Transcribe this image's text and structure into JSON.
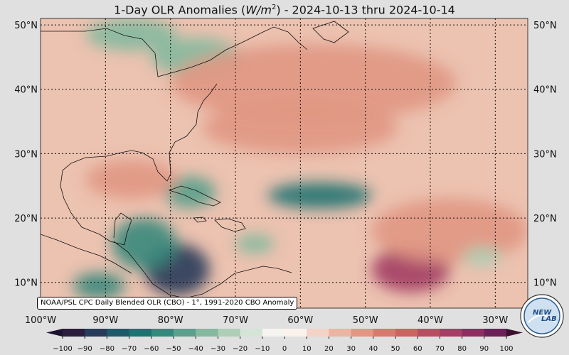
{
  "title": {
    "prefix": "1-Day OLR Anomalies (",
    "unit_main": "W/m",
    "unit_exp": "2",
    "suffix": ") - 2024-10-13 thru 2024-10-14"
  },
  "map": {
    "lat_ticks": [
      {
        "value": 50,
        "label": "50°N"
      },
      {
        "value": 40,
        "label": "40°N"
      },
      {
        "value": 30,
        "label": "30°N"
      },
      {
        "value": 20,
        "label": "20°N"
      },
      {
        "value": 10,
        "label": "10°N"
      }
    ],
    "lon_ticks": [
      {
        "value": -100,
        "label": "100°W"
      },
      {
        "value": -90,
        "label": "90°W"
      },
      {
        "value": -80,
        "label": "80°W"
      },
      {
        "value": -70,
        "label": "70°W"
      },
      {
        "value": -60,
        "label": "60°W"
      },
      {
        "value": -50,
        "label": "50°W"
      },
      {
        "value": -40,
        "label": "40°W"
      },
      {
        "value": -30,
        "label": "30°W"
      }
    ],
    "extent": {
      "lon_min": -100,
      "lon_max": -25,
      "lat_min": 6,
      "lat_max": 51
    },
    "anomaly_features": [
      {
        "lon": -79,
        "lat": 12,
        "value": -90,
        "rx": 5,
        "ry": 4
      },
      {
        "lon": -84,
        "lat": 16,
        "value": -55,
        "rx": 5,
        "ry": 4
      },
      {
        "lon": -91,
        "lat": 9.5,
        "value": -60,
        "rx": 4,
        "ry": 2
      },
      {
        "lon": -57,
        "lat": 23.5,
        "value": -70,
        "rx": 8,
        "ry": 2
      },
      {
        "lon": -77,
        "lat": 24,
        "value": -45,
        "rx": 4,
        "ry": 2.5
      },
      {
        "lon": -67,
        "lat": 16,
        "value": -40,
        "rx": 3,
        "ry": 1.5
      },
      {
        "lon": -76,
        "lat": 45,
        "value": -40,
        "rx": 7,
        "ry": 3
      },
      {
        "lon": -86,
        "lat": 48.5,
        "value": -35,
        "rx": 7,
        "ry": 2.5
      },
      {
        "lon": -58,
        "lat": 41,
        "value": 35,
        "rx": 22,
        "ry": 6
      },
      {
        "lon": -43,
        "lat": 12,
        "value": 70,
        "rx": 6,
        "ry": 3.5
      },
      {
        "lon": -37,
        "lat": 18,
        "value": 35,
        "rx": 12,
        "ry": 5
      },
      {
        "lon": -60,
        "lat": 34,
        "value": 30,
        "rx": 15,
        "ry": 4
      },
      {
        "lon": -86,
        "lat": 26,
        "value": 30,
        "rx": 7,
        "ry": 3
      },
      {
        "lon": -32,
        "lat": 14,
        "value": -30,
        "rx": 3,
        "ry": 1.5
      }
    ]
  },
  "colorbar": {
    "min": -100,
    "max": 100,
    "step": 10,
    "tick_labels": [
      "−100",
      "−90",
      "−80",
      "−70",
      "−60",
      "−50",
      "−40",
      "−30",
      "−20",
      "−10",
      "0",
      "10",
      "20",
      "30",
      "40",
      "50",
      "60",
      "70",
      "80",
      "90",
      "100"
    ],
    "colors": [
      "#2b1d3e",
      "#273c5a",
      "#1d5a6a",
      "#1f7271",
      "#37887c",
      "#5aa08c",
      "#84b99f",
      "#adcfb5",
      "#d4e5d8",
      "#f6f4f1",
      "#fcf2ec",
      "#f3d3c5",
      "#eab5a2",
      "#e09783",
      "#d47b6d",
      "#c8655e",
      "#b55060",
      "#a33f64",
      "#8b2f63",
      "#6b2157"
    ]
  },
  "source_text": "NOAA/PSL CPC Daily Blended OLR (CBO) - 1°, 1991-2020 CBO Anomaly",
  "logo": {
    "text_left": "NEW",
    "text_right": "LAB"
  }
}
